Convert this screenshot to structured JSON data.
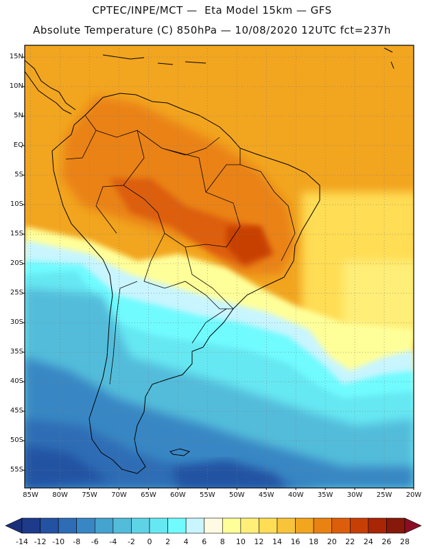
{
  "header": {
    "line1": "CPTEC/INPE/MCT —  Eta Model 15km — GFS",
    "line2": "Absolute Temperature (C) 850hPa — 10/08/2020 12UTC fct=237h"
  },
  "map": {
    "lat_labels": [
      "15N",
      "10N",
      "5N",
      "EQ",
      "5S",
      "10S",
      "15S",
      "20S",
      "25S",
      "30S",
      "35S",
      "40S",
      "45S",
      "50S",
      "55S"
    ],
    "lon_labels": [
      "85W",
      "80W",
      "75W",
      "70W",
      "65W",
      "60W",
      "55W",
      "50W",
      "45W",
      "40W",
      "35W",
      "30W",
      "25W",
      "20W"
    ],
    "lat_range": [
      17,
      -58
    ],
    "lon_range": [
      -86,
      -20
    ]
  },
  "colorbar": {
    "labels": [
      "-14",
      "-12",
      "-10",
      "-8",
      "-6",
      "-4",
      "-2",
      "0",
      "2",
      "4",
      "6",
      "8",
      "10",
      "12",
      "14",
      "16",
      "18",
      "20",
      "22",
      "24",
      "26",
      "28"
    ],
    "colors": [
      "#1d3b8a",
      "#2452a3",
      "#2e6db5",
      "#3887c4",
      "#44a3cf",
      "#52bcda",
      "#5ed3e6",
      "#66e8f2",
      "#70fbff",
      "#c8f5ff",
      "#fffbe3",
      "#ffff99",
      "#ffee77",
      "#ffdd55",
      "#f8c43a",
      "#f2a51f",
      "#ea8212",
      "#dd5e0a",
      "#c83f05",
      "#a82505",
      "#861909"
    ],
    "under_color": "#1a2f7a",
    "over_color": "#8a0d25"
  }
}
